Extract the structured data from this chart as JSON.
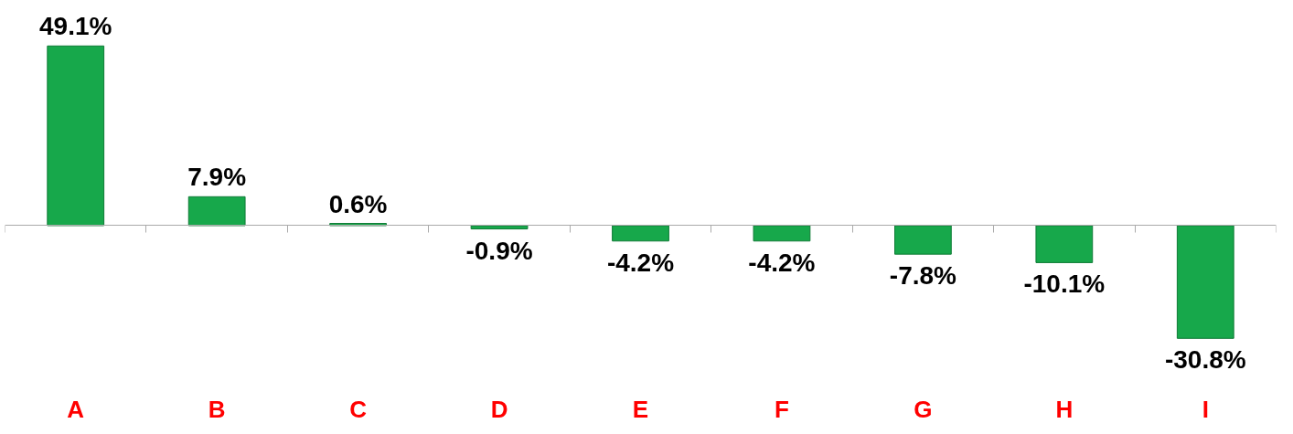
{
  "chart_data": {
    "type": "bar",
    "categories": [
      "A",
      "B",
      "C",
      "D",
      "E",
      "F",
      "G",
      "H",
      "I"
    ],
    "values": [
      49.1,
      7.9,
      0.6,
      -0.9,
      -4.2,
      -4.2,
      -7.8,
      -10.1,
      -30.8
    ],
    "value_labels": [
      "49.1%",
      "7.9%",
      "0.6%",
      "-0.9%",
      "-4.2%",
      "-4.2%",
      "-7.8%",
      "-10.1%",
      "-30.8%"
    ],
    "color": "#17a84b",
    "tick_labels": "x",
    "grid": false
  }
}
